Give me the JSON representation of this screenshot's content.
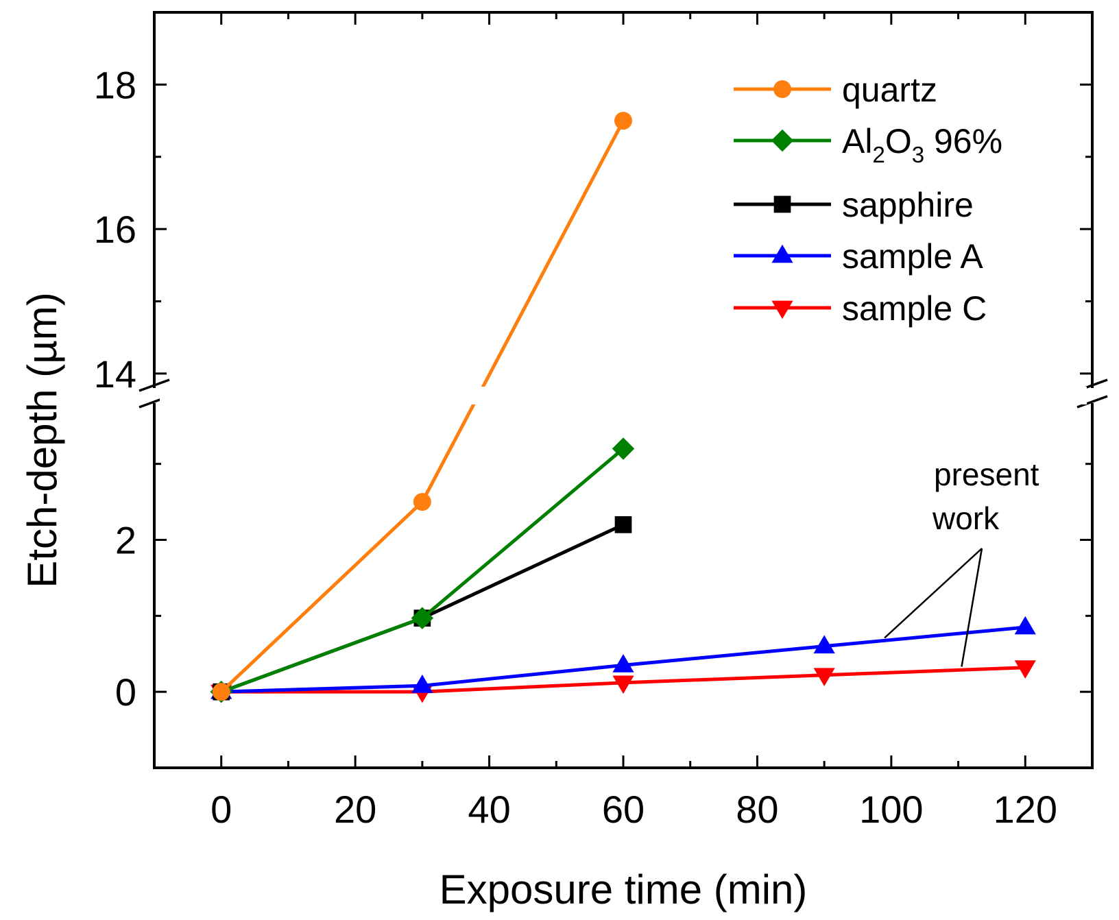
{
  "chart_data": {
    "type": "line",
    "title": "",
    "xlabel": "Exposure time (min)",
    "ylabel": "Etch-depth (µm)",
    "xlim": [
      -10,
      130
    ],
    "ylim_lower": [
      -1,
      3.8
    ],
    "ylim_upper": [
      13.8,
      19
    ],
    "y_axis_break": true,
    "x_ticks": [
      0,
      20,
      40,
      60,
      80,
      100,
      120
    ],
    "y_ticks_lower": [
      0,
      2
    ],
    "y_ticks_upper": [
      14,
      16,
      18
    ],
    "legend_position": "top-right",
    "series": [
      {
        "name": "quartz",
        "name_parts": [
          "quartz"
        ],
        "color": "#ff7f0e",
        "marker": "circle",
        "x": [
          0,
          30,
          60
        ],
        "y": [
          0,
          2.5,
          17.5
        ]
      },
      {
        "name": "Al2O3 96%",
        "name_parts": [
          "Al",
          "2",
          "O",
          "3",
          " 96%"
        ],
        "color": "#008000",
        "marker": "diamond",
        "x": [
          0,
          30,
          60
        ],
        "y": [
          0,
          0.97,
          3.2
        ]
      },
      {
        "name": "sapphire",
        "name_parts": [
          "sapphire"
        ],
        "color": "#000000",
        "marker": "square",
        "x": [
          0,
          30,
          60
        ],
        "y": [
          0,
          0.97,
          2.2
        ]
      },
      {
        "name": "sample A",
        "name_parts": [
          "sample A"
        ],
        "color": "#0000ff",
        "marker": "triangle-up",
        "x": [
          0,
          30,
          60,
          90,
          120
        ],
        "y": [
          0,
          0.08,
          0.35,
          0.6,
          0.85
        ]
      },
      {
        "name": "sample C",
        "name_parts": [
          "sample C"
        ],
        "color": "#ff0000",
        "marker": "triangle-down",
        "x": [
          0,
          30,
          60,
          90,
          120
        ],
        "y": [
          0,
          0,
          0.12,
          0.22,
          0.32
        ]
      }
    ],
    "annotations": [
      {
        "text_lines": [
          "present",
          "work"
        ]
      }
    ]
  }
}
